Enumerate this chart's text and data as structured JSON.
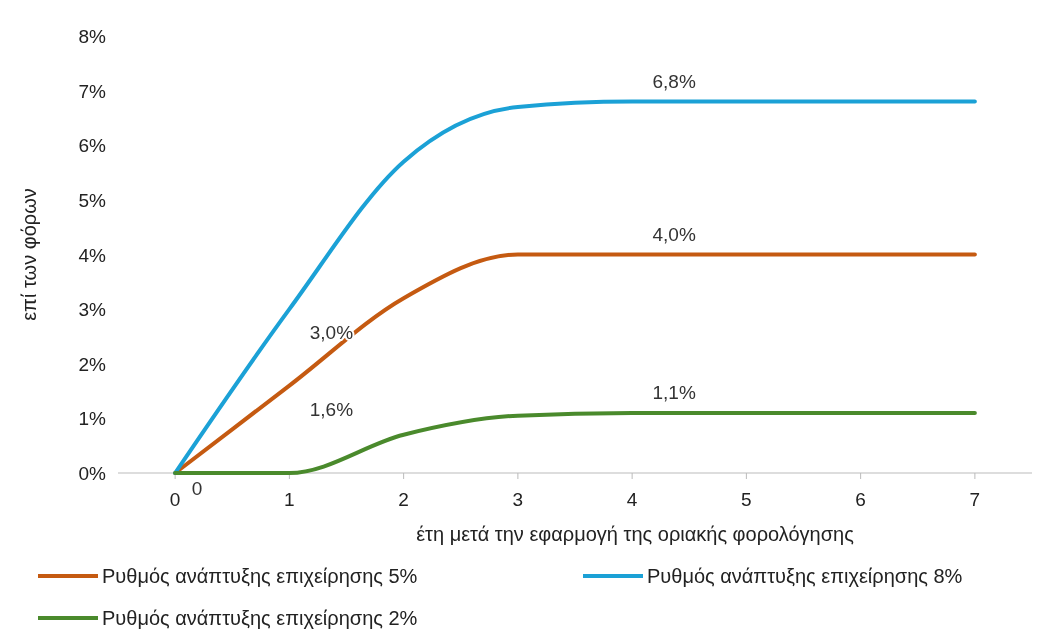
{
  "chart_data": {
    "type": "line",
    "xlabel": "έτη μετά την εφαρμογή της οριακής φορολόγησης",
    "ylabel": "επί των φόρων",
    "x": [
      0,
      1,
      2,
      3,
      4,
      5,
      6,
      7
    ],
    "xlim": [
      -0.5,
      7.5
    ],
    "xticks": [
      0,
      1,
      2,
      3,
      4,
      5,
      6,
      7
    ],
    "ylim": [
      0,
      8
    ],
    "yticks": [
      {
        "value": 0,
        "label": "0%"
      },
      {
        "value": 1,
        "label": "1%"
      },
      {
        "value": 2,
        "label": "2%"
      },
      {
        "value": 3,
        "label": "3%"
      },
      {
        "value": 4,
        "label": "4%"
      },
      {
        "value": 5,
        "label": "5%"
      },
      {
        "value": 6,
        "label": "6%"
      },
      {
        "value": 7,
        "label": "7%"
      },
      {
        "value": 8,
        "label": "8%"
      }
    ],
    "grid": false,
    "legend": "bottom",
    "marker": "none",
    "line_style": "solid",
    "series": [
      {
        "name": "Ρυθμός ανάπτυξης επιχείρησης 5%",
        "color": "#c55a11",
        "values": [
          0,
          1.6,
          3.2,
          4.0,
          4.0,
          4.0,
          4.0,
          4.0
        ],
        "value_labels": [
          null,
          "1,6%",
          null,
          null,
          "4,0%",
          null,
          null,
          null
        ]
      },
      {
        "name": "Ρυθμός ανάπτυξης επιχείρησης 8%",
        "color": "#1ba1d6",
        "values": [
          0,
          3.0,
          5.7,
          6.7,
          6.8,
          6.8,
          6.8,
          6.8
        ],
        "value_labels": [
          null,
          "3,0%",
          null,
          null,
          "6,8%",
          null,
          null,
          null
        ]
      },
      {
        "name": "Ρυθμός ανάπτυξης επιχείρησης 2%",
        "color": "#4a8a2c",
        "values": [
          0,
          0,
          0.7,
          1.05,
          1.1,
          1.1,
          1.1,
          1.1
        ],
        "value_labels": [
          "0",
          null,
          null,
          null,
          "1,1%",
          null,
          null,
          null
        ]
      }
    ]
  }
}
